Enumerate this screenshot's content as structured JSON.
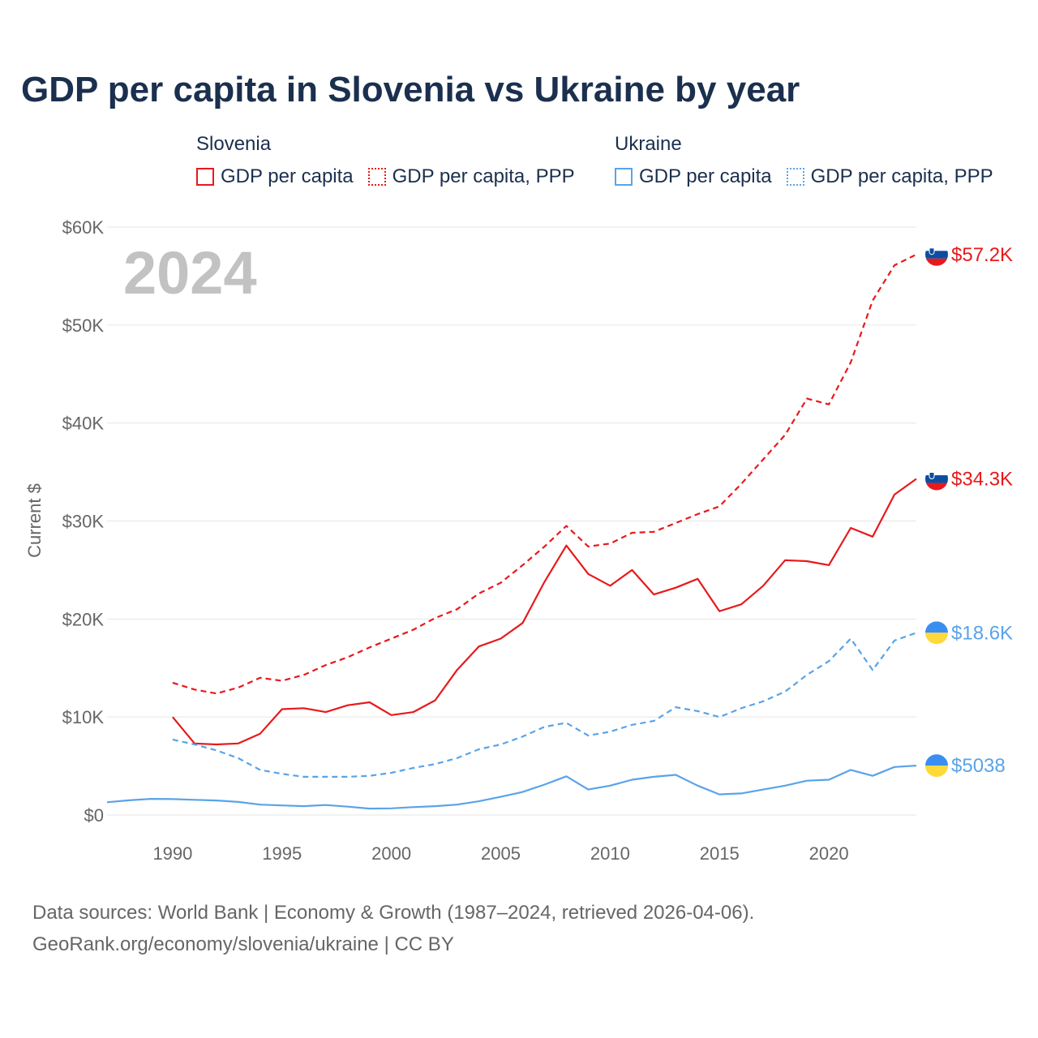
{
  "title": "GDP per capita in Slovenia vs Ukraine by year",
  "legend": {
    "groups": [
      {
        "name": "Slovenia",
        "color": "#e8191c",
        "items": [
          {
            "label": "GDP per capita",
            "style": "solid"
          },
          {
            "label": "GDP per capita, PPP",
            "style": "dotted"
          }
        ]
      },
      {
        "name": "Ukraine",
        "color": "#5aa3e8",
        "items": [
          {
            "label": "GDP per capita",
            "style": "solid"
          },
          {
            "label": "GDP per capita, PPP",
            "style": "dotted"
          }
        ]
      }
    ]
  },
  "year_overlay": "2024",
  "source": {
    "line1": "Data sources: World Bank | Economy & Growth (1987–2024, retrieved 2026-04-06).",
    "line2": "GeoRank.org/economy/slovenia/ukraine | CC BY"
  },
  "chart_data": {
    "type": "line",
    "title": "GDP per capita in Slovenia vs Ukraine by year",
    "xlabel": "",
    "ylabel": "Current $",
    "xlim": [
      1987,
      2024
    ],
    "ylim": [
      0,
      60000
    ],
    "x_ticks": [
      1990,
      1995,
      2000,
      2005,
      2010,
      2015,
      2020
    ],
    "y_ticks": [
      0,
      10000,
      20000,
      30000,
      40000,
      50000,
      60000
    ],
    "y_tick_labels": [
      "$0",
      "$10K",
      "$20K",
      "$30K",
      "$40K",
      "$50K",
      "$60K"
    ],
    "grid": true,
    "series": [
      {
        "name": "Slovenia GDP per capita, PPP",
        "country": "Slovenia",
        "color": "#e8191c",
        "dash": true,
        "end_label": "$57.2K",
        "flag": "slovenia",
        "x_start": 1990,
        "values": [
          13500,
          12800,
          12400,
          13000,
          14000,
          13700,
          14300,
          15300,
          16100,
          17100,
          18000,
          18900,
          20100,
          21000,
          22600,
          23700,
          25500,
          27400,
          29500,
          27400,
          27700,
          28800,
          28900,
          29800,
          30700,
          31500,
          33800,
          36300,
          38800,
          42500,
          41900,
          46200,
          52500,
          56100,
          57200
        ]
      },
      {
        "name": "Slovenia GDP per capita",
        "country": "Slovenia",
        "color": "#e8191c",
        "dash": false,
        "end_label": "$34.3K",
        "flag": "slovenia",
        "x_start": 1990,
        "values": [
          10000,
          7300,
          7200,
          7300,
          8300,
          10800,
          10900,
          10500,
          11200,
          11500,
          10200,
          10500,
          11700,
          14800,
          17200,
          18000,
          19600,
          23800,
          27500,
          24600,
          23400,
          25000,
          22500,
          23200,
          24100,
          20800,
          21500,
          23400,
          26000,
          25900,
          25500,
          29300,
          28400,
          32700,
          34300
        ]
      },
      {
        "name": "Ukraine GDP per capita, PPP",
        "country": "Ukraine",
        "color": "#5aa3e8",
        "dash": true,
        "end_label": "$18.6K",
        "flag": "ukraine",
        "x_start": 1990,
        "values": [
          7700,
          7200,
          6600,
          5800,
          4600,
          4200,
          3900,
          3900,
          3900,
          4000,
          4300,
          4800,
          5200,
          5800,
          6700,
          7200,
          8000,
          9000,
          9400,
          8100,
          8500,
          9200,
          9600,
          11000,
          10600,
          10000,
          10900,
          11600,
          12600,
          14300,
          15700,
          18000,
          14800,
          17800,
          18600
        ]
      },
      {
        "name": "Ukraine GDP per capita",
        "country": "Ukraine",
        "color": "#5aa3e8",
        "dash": false,
        "end_label": "$5038",
        "flag": "ukraine",
        "x_start": 1987,
        "values": [
          1300,
          1500,
          1650,
          1620,
          1550,
          1480,
          1330,
          1060,
          980,
          900,
          1020,
          850,
          650,
          680,
          800,
          900,
          1060,
          1400,
          1850,
          2350,
          3100,
          3950,
          2600,
          3000,
          3600,
          3900,
          4100,
          3000,
          2100,
          2200,
          2600,
          3000,
          3500,
          3600,
          4600,
          4000,
          4900,
          5038
        ]
      }
    ]
  }
}
